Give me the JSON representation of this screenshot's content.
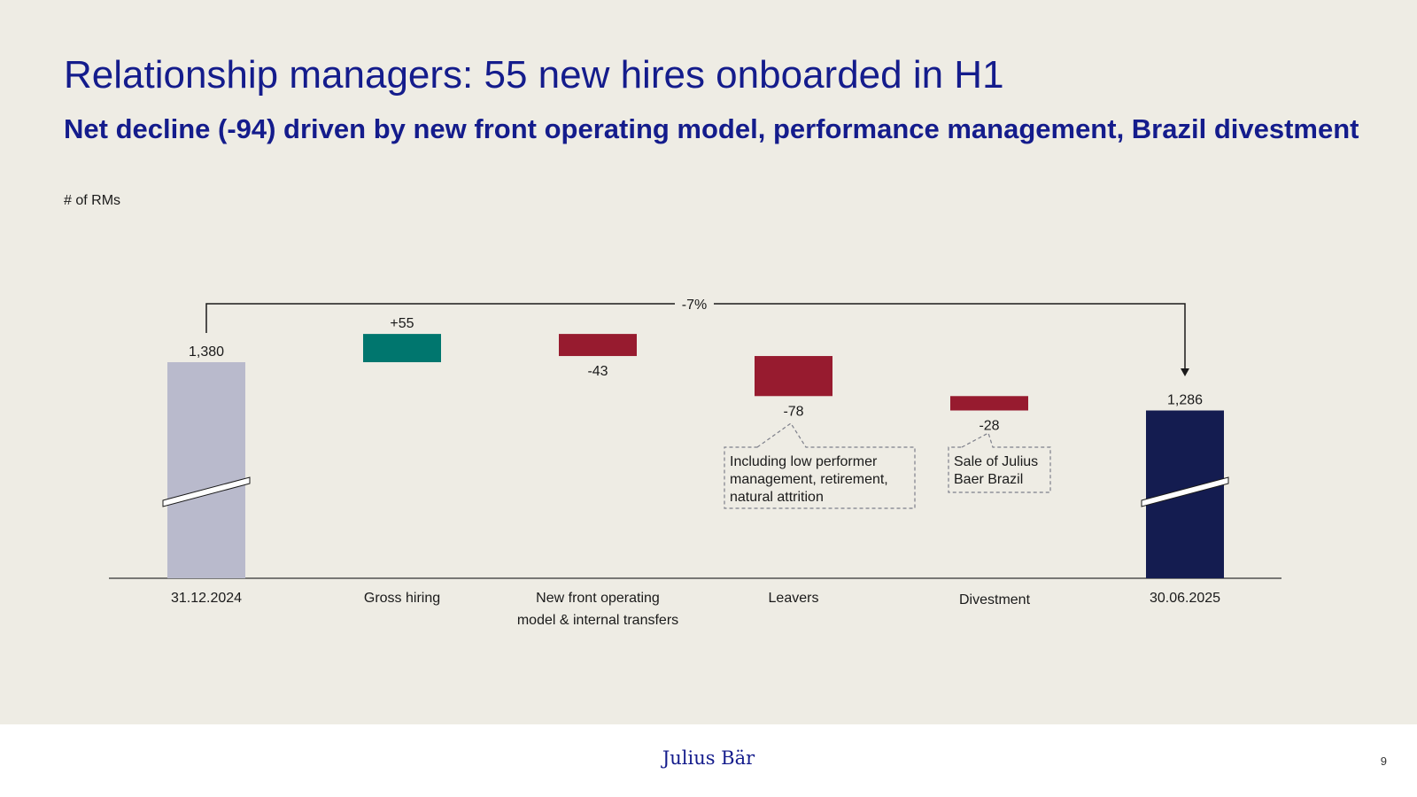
{
  "header": {
    "title": "Relationship managers: 55 new hires onboarded in H1",
    "subtitle": "Net decline (-94) driven by new front operating model, performance management, Brazil divestment",
    "unit_label": "# of RMs"
  },
  "colors": {
    "start_bar": "#B9BACC",
    "increase": "#00766E",
    "decrease": "#971B2F",
    "end_bar": "#141C50",
    "title": "#141C8C"
  },
  "chart_data": {
    "type": "waterfall",
    "axis_break": true,
    "categories": [
      "31.12.2024",
      "Gross hiring",
      "New front operating model & internal transfers",
      "Leavers",
      "Divestment",
      "30.06.2025"
    ],
    "category_label_lines": [
      [
        "31.12.2024"
      ],
      [
        "Gross hiring"
      ],
      [
        "New front operating",
        "model & internal transfers"
      ],
      [
        "Leavers"
      ],
      [
        "Divestment"
      ],
      [
        "30.06.2025"
      ]
    ],
    "values": [
      1380,
      55,
      -43,
      -78,
      -28,
      1286
    ],
    "kinds": [
      "total",
      "increase",
      "decrease",
      "decrease",
      "decrease",
      "total"
    ],
    "data_labels": [
      "1,380",
      "+55",
      "-43",
      "-78",
      "-28",
      "1,286"
    ],
    "bracket_label": "-7%",
    "callouts": [
      {
        "category_index": 3,
        "lines": [
          "Including low performer",
          "management, retirement,",
          "natural attrition"
        ]
      },
      {
        "category_index": 4,
        "lines": [
          "Sale of Julius",
          "Baer Brazil"
        ]
      }
    ]
  },
  "footer": {
    "logo_text": "Julius Bär",
    "page_number": "9"
  }
}
